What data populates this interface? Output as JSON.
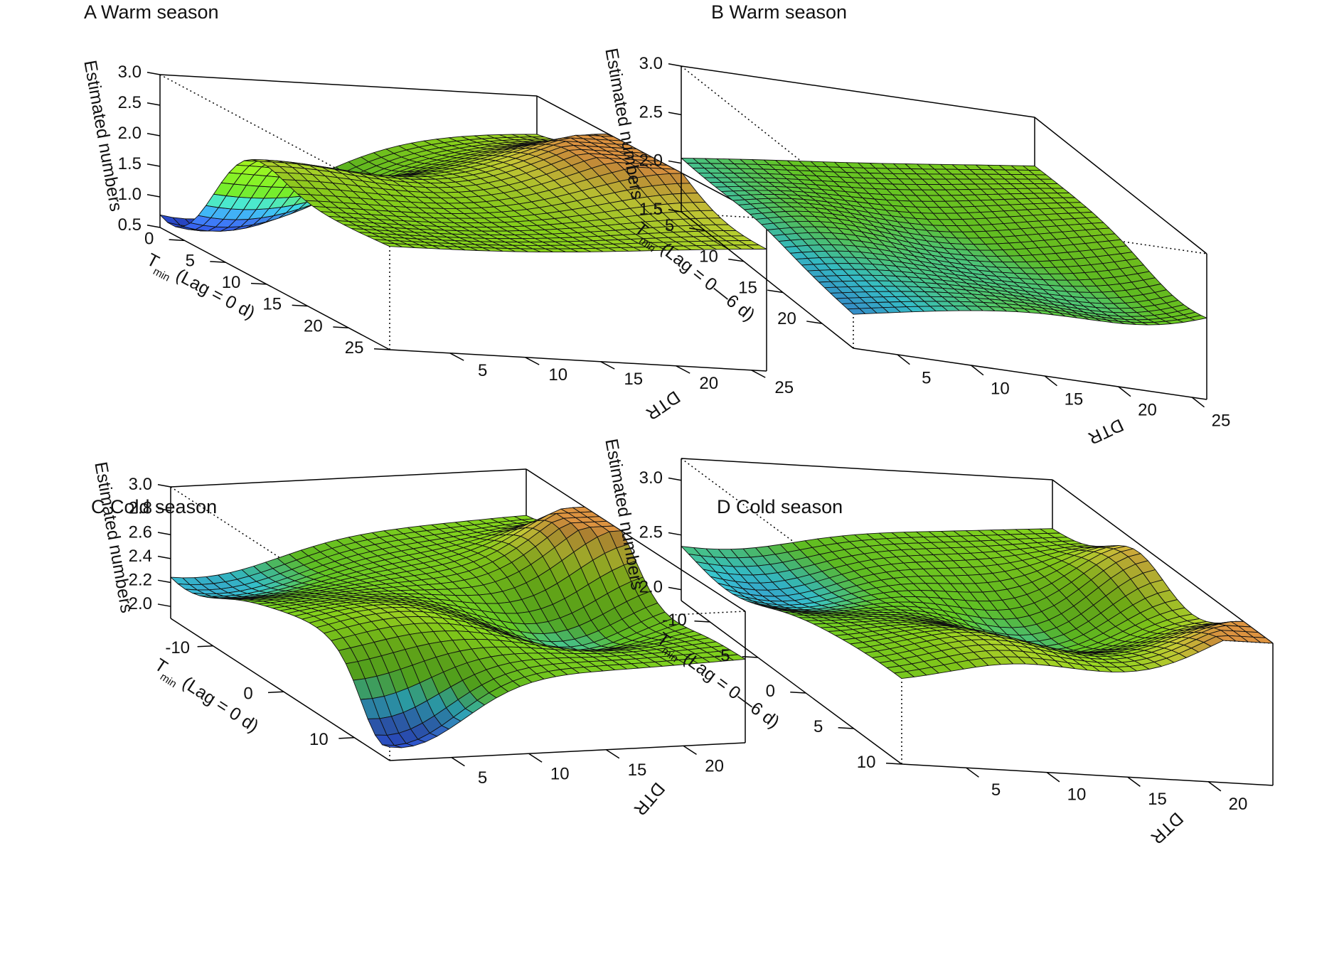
{
  "chart_data": [
    {
      "type": "surface3d",
      "title": "A Warm season",
      "xlabel": "T",
      "xlabel_sub": "min",
      "xlabel_rest": " (Lag = 0 d)",
      "ylabel": "DTR",
      "zlabel": "Estimated numbers",
      "xlim": [
        -3,
        25
      ],
      "ylim": [
        1,
        26
      ],
      "zlim": [
        0.5,
        3.0
      ],
      "x_ticks": [
        0,
        5,
        10,
        15,
        20,
        25
      ],
      "y_ticks": [
        5,
        10,
        15,
        20,
        25
      ],
      "z_ticks": [
        0.5,
        1.0,
        1.5,
        2.0,
        2.5,
        3.0
      ],
      "z_tick_labels": [
        "0.5",
        "1.0",
        "1.5",
        "2.0",
        "2.5",
        "3.0"
      ],
      "grid_size": 30,
      "surface": {
        "base": 2.1,
        "tilt_x": 0.15,
        "tilt_y": 0.25,
        "tilt_xy": 0.0,
        "features": [
          {
            "x": -1,
            "y": 3,
            "amp": -1.6,
            "sx": 5,
            "sy": 7
          },
          {
            "x": 10,
            "y": 26,
            "amp": 0.9,
            "sx": 5,
            "sy": 6
          },
          {
            "x": 7,
            "y": 2,
            "amp": 0.6,
            "sx": 4,
            "sy": 6
          },
          {
            "x": 19,
            "y": 10,
            "amp": -0.15,
            "sx": 8,
            "sy": 8
          }
        ]
      }
    },
    {
      "type": "surface3d",
      "title": "B Warm season",
      "xlabel": "T",
      "xlabel_sub": "min",
      "xlabel_rest": " (Lag = 0—6 d)",
      "ylabel": "DTR",
      "zlabel": "Estimated numbers",
      "xlim": [
        2,
        24
      ],
      "ylim": [
        2,
        26
      ],
      "zlim": [
        1.5,
        3.0
      ],
      "x_ticks": [
        5,
        10,
        15,
        20
      ],
      "y_ticks": [
        5,
        10,
        15,
        20,
        25
      ],
      "z_ticks": [
        1.5,
        2.0,
        2.5,
        3.0
      ],
      "z_tick_labels": [
        "1.5",
        "2.0",
        "2.5",
        "3.0"
      ],
      "grid_size": 30,
      "surface": {
        "base": 2.05,
        "tilt_x": -0.2,
        "tilt_y": 0.45,
        "tilt_xy": 0.25,
        "features": [
          {
            "x": 21,
            "y": 23,
            "amp": -0.3,
            "sx": 5,
            "sy": 5
          },
          {
            "x": 14,
            "y": 15,
            "amp": -0.15,
            "sx": 5,
            "sy": 5
          },
          {
            "x": 12,
            "y": 6,
            "amp": 0.12,
            "sx": 4,
            "sy": 4
          }
        ]
      }
    },
    {
      "type": "surface3d",
      "title": "C Cold season",
      "xlabel": "T",
      "xlabel_sub": "min",
      "xlabel_rest": " (Lag = 0 d)",
      "ylabel": "DTR",
      "zlabel": "Estimated numbers",
      "xlim": [
        -16,
        15
      ],
      "ylim": [
        1,
        24
      ],
      "zlim": [
        1.9,
        3.0
      ],
      "x_ticks": [
        -10,
        0,
        10
      ],
      "y_ticks": [
        5,
        10,
        15,
        20
      ],
      "z_ticks": [
        2.0,
        2.2,
        2.4,
        2.6,
        2.8,
        3.0
      ],
      "z_tick_labels": [
        "2.0",
        "2.2",
        "2.4",
        "2.6",
        "2.8",
        "3.0"
      ],
      "grid_size": 30,
      "surface": {
        "base": 2.5,
        "tilt_x": 0.0,
        "tilt_y": 0.1,
        "tilt_xy": 0.0,
        "features": [
          {
            "x": -5,
            "y": 24,
            "amp": 0.55,
            "sx": 4,
            "sy": 4
          },
          {
            "x": 3,
            "y": 18,
            "amp": -0.3,
            "sx": 4,
            "sy": 4
          },
          {
            "x": -14,
            "y": 3,
            "amp": -0.3,
            "sx": 5,
            "sy": 5
          },
          {
            "x": 14,
            "y": 2,
            "amp": -0.55,
            "sx": 3,
            "sy": 4
          },
          {
            "x": 5,
            "y": 6,
            "amp": 0.2,
            "sx": 5,
            "sy": 5
          }
        ]
      }
    },
    {
      "type": "surface3d",
      "title": "D Cold season",
      "xlabel": "T",
      "xlabel_sub": "min",
      "xlabel_rest": " (Lag = 0—6 d)",
      "ylabel": "DTR",
      "zlabel": "Estimated numbers",
      "xlim": [
        -13,
        10
      ],
      "ylim": [
        1,
        24
      ],
      "zlim": [
        1.9,
        3.2
      ],
      "x_ticks": [
        -10,
        -5,
        0,
        5,
        10
      ],
      "y_ticks": [
        5,
        10,
        15,
        20
      ],
      "z_ticks": [
        2.0,
        2.5,
        3.0
      ],
      "z_tick_labels": [
        "2.0",
        "2.5",
        "3.0"
      ],
      "grid_size": 30,
      "surface": {
        "base": 2.5,
        "tilt_x": 0.15,
        "tilt_y": 0.25,
        "tilt_xy": 0.0,
        "features": [
          {
            "x": 10,
            "y": 24,
            "amp": 0.45,
            "sx": 4,
            "sy": 4
          },
          {
            "x": -4,
            "y": 24,
            "amp": 0.35,
            "sx": 3,
            "sy": 3
          },
          {
            "x": -1,
            "y": 16,
            "amp": -0.35,
            "sx": 4,
            "sy": 4
          },
          {
            "x": -8,
            "y": 4,
            "amp": -0.3,
            "sx": 4,
            "sy": 4
          },
          {
            "x": 7,
            "y": 8,
            "amp": 0.2,
            "sx": 4,
            "sy": 4
          }
        ]
      }
    }
  ]
}
